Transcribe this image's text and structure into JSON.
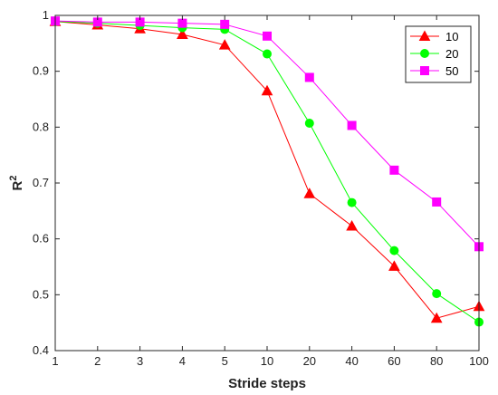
{
  "chart_data": {
    "type": "line",
    "categories": [
      "1",
      "2",
      "3",
      "4",
      "5",
      "10",
      "20",
      "40",
      "60",
      "80",
      "100"
    ],
    "xlabel": "Stride steps",
    "ylabel": "R",
    "ylabel_superscript": "2",
    "ylim": [
      0.4,
      1
    ],
    "yticks": [
      "0.4",
      "0.5",
      "0.6",
      "0.7",
      "0.8",
      "0.9",
      "1"
    ],
    "grid": false,
    "legend_placement": "top-right",
    "series": [
      {
        "name": "10",
        "color": "#ff0000",
        "marker": "triangle",
        "values": [
          0.989,
          0.983,
          0.976,
          0.966,
          0.947,
          0.865,
          0.681,
          0.623,
          0.551,
          0.458,
          0.479
        ]
      },
      {
        "name": "20",
        "color": "#00ff00",
        "marker": "circle",
        "values": [
          0.989,
          0.986,
          0.982,
          0.978,
          0.975,
          0.931,
          0.807,
          0.665,
          0.579,
          0.502,
          0.451
        ]
      },
      {
        "name": "50",
        "color": "#ff00ff",
        "marker": "square",
        "values": [
          0.99,
          0.988,
          0.988,
          0.986,
          0.984,
          0.963,
          0.889,
          0.803,
          0.723,
          0.666,
          0.586
        ]
      }
    ]
  }
}
